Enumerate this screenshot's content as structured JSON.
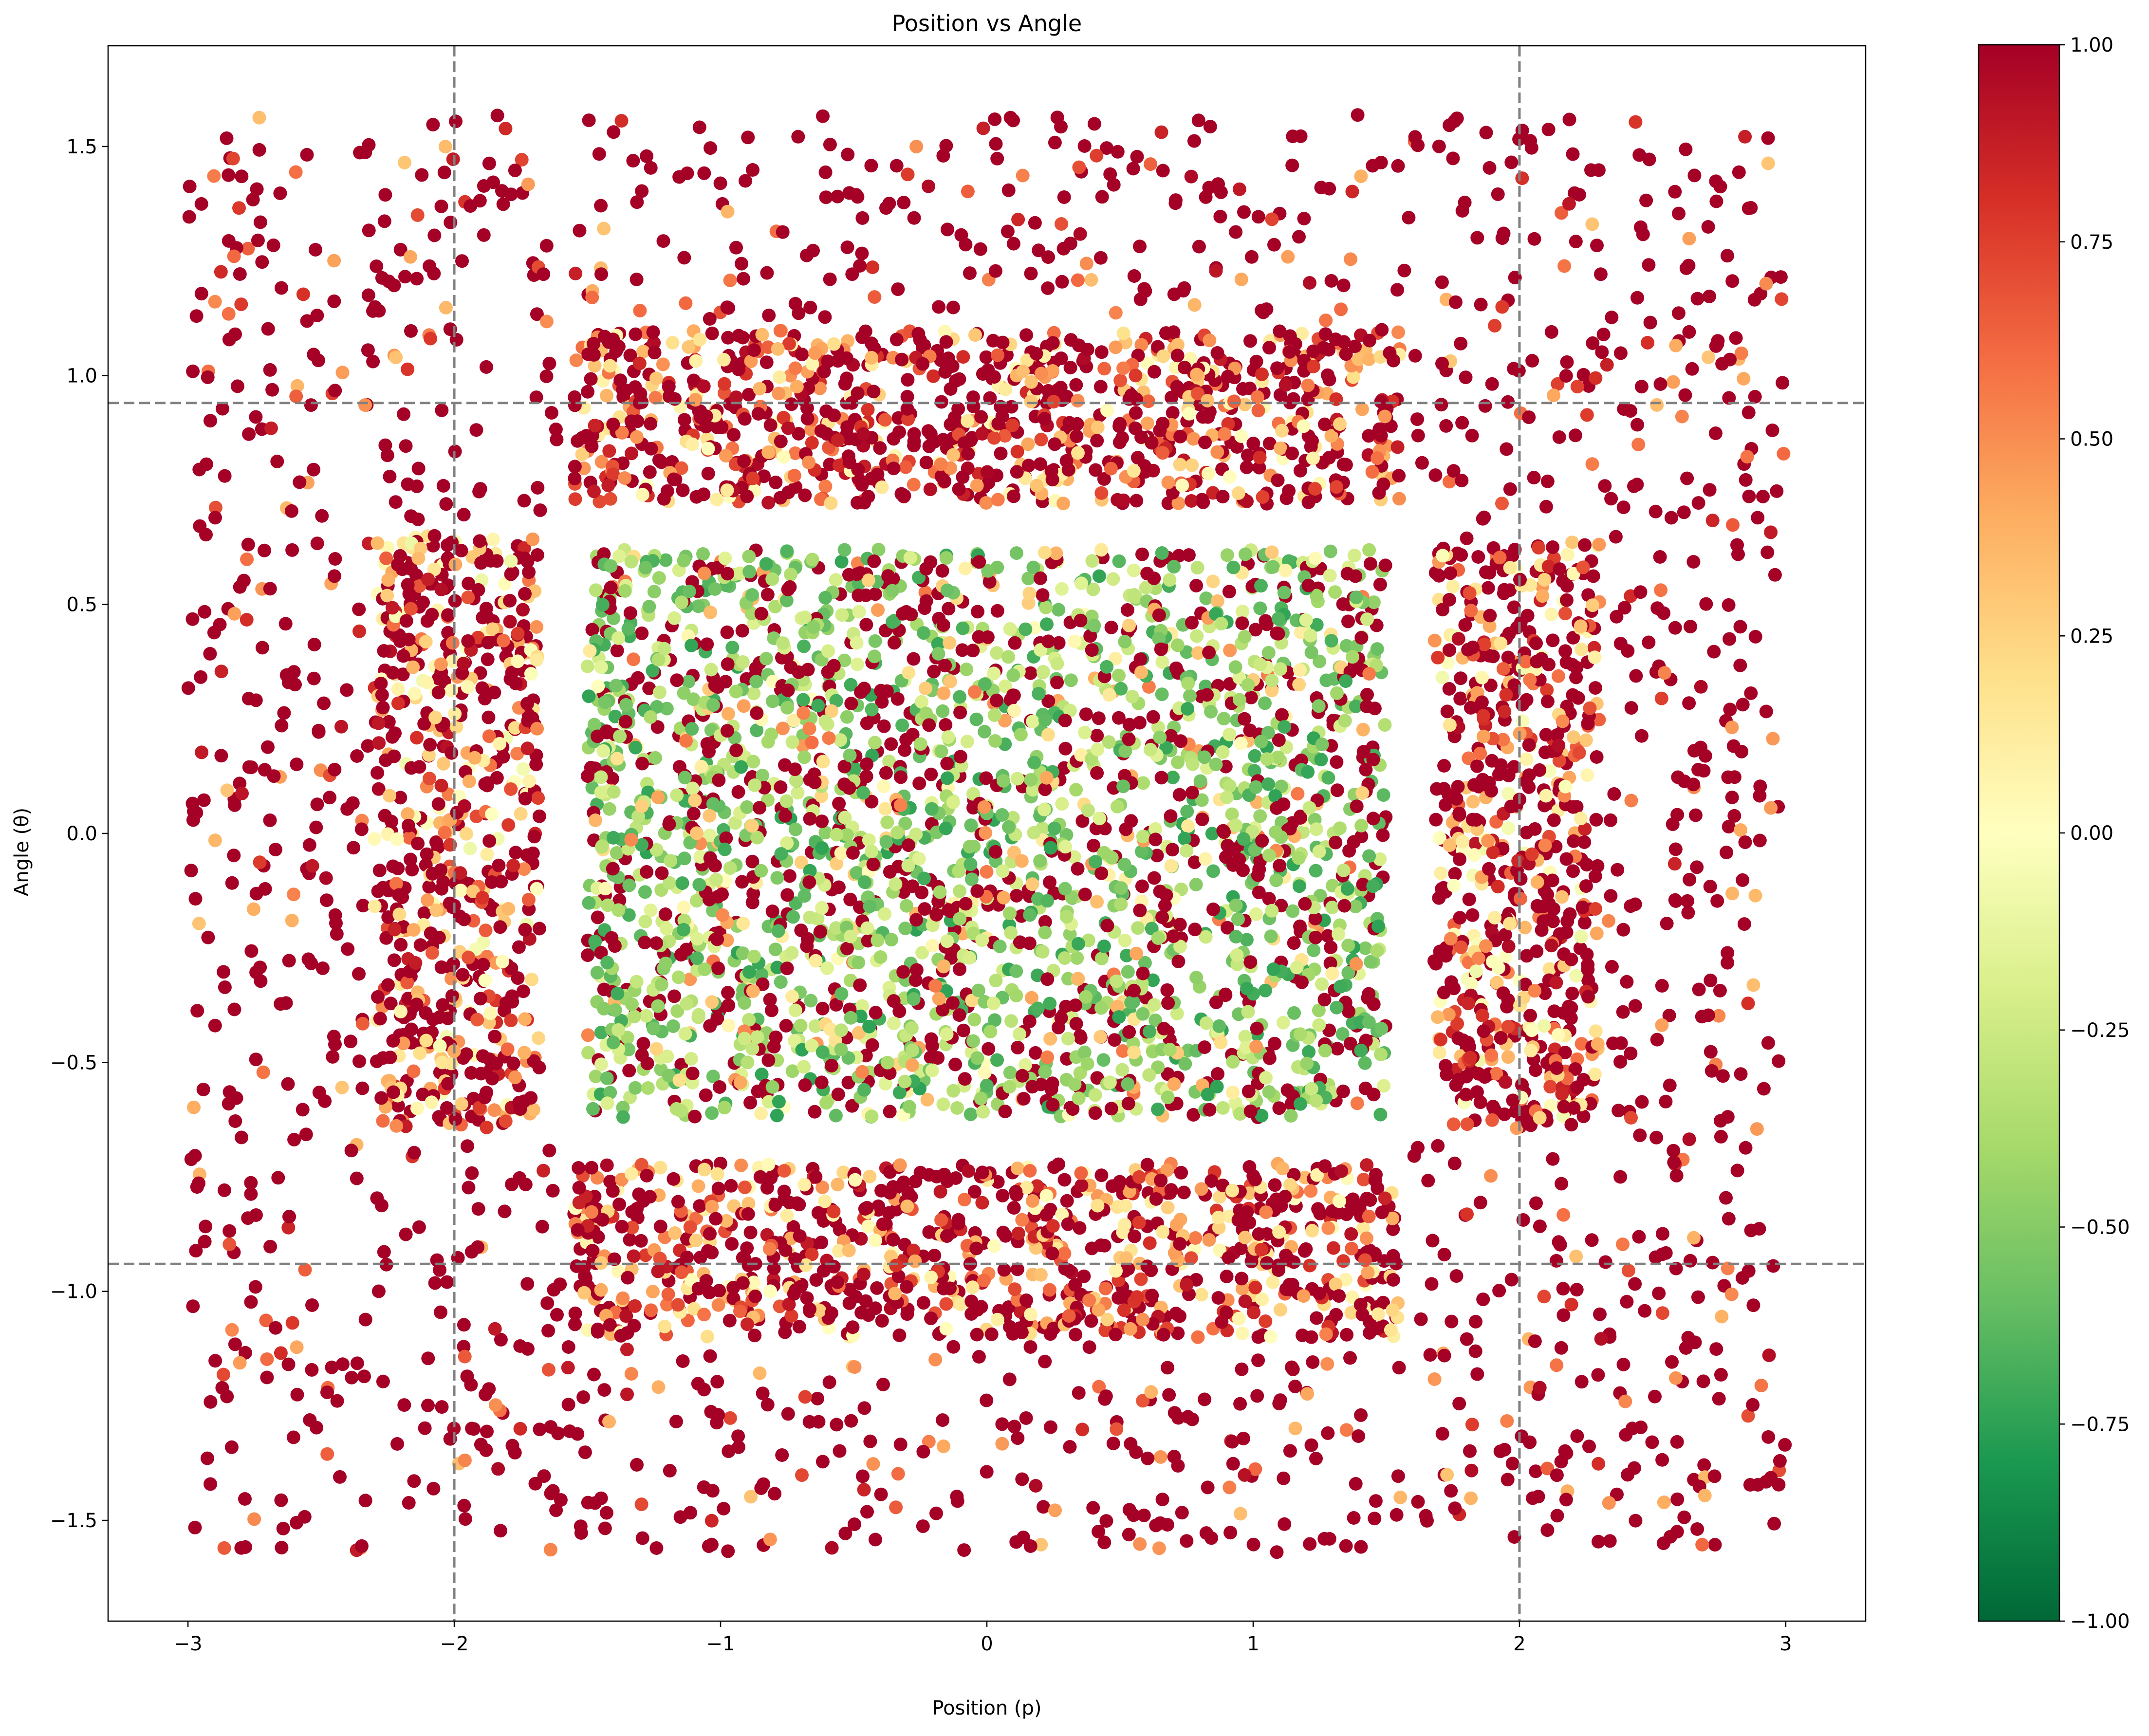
{
  "chart_data": {
    "type": "scatter",
    "title": "Position vs Angle",
    "xlabel": "Position (p)",
    "ylabel": "Angle (θ)",
    "xlim": [
      -3.3,
      3.3
    ],
    "ylim": [
      -1.72,
      1.72
    ],
    "xticks": [
      -3,
      -2,
      -1,
      0,
      1,
      2,
      3
    ],
    "xtick_labels": [
      "−3",
      "−2",
      "−1",
      "0",
      "1",
      "2",
      "3"
    ],
    "yticks": [
      -1.5,
      -1.0,
      -0.5,
      0.0,
      0.5,
      1.0,
      1.5
    ],
    "ytick_labels": [
      "−1.5",
      "−1.0",
      "−0.5",
      "0.0",
      "0.5",
      "1.0",
      "1.5"
    ],
    "reference_lines": {
      "vertical_x": [
        -2,
        2
      ],
      "horizontal_y": [
        -0.94,
        0.94
      ],
      "style": "dashed",
      "color": "#808080"
    },
    "colorbar": {
      "colormap": "RdYlGn_r",
      "range": [
        -1.0,
        1.0
      ],
      "ticks": [
        -1.0,
        -0.75,
        -0.5,
        -0.25,
        0.0,
        0.25,
        0.5,
        0.75,
        1.0
      ],
      "tick_labels": [
        "−1.00",
        "−0.75",
        "−0.50",
        "−0.25",
        "0.00",
        "0.25",
        "0.50",
        "0.75",
        "1.00"
      ],
      "stops": [
        "#006837",
        "#1a9850",
        "#66bd63",
        "#a6d96a",
        "#d9ef8b",
        "#ffffbf",
        "#fee08b",
        "#fdae61",
        "#f46d43",
        "#d73027",
        "#a50026"
      ]
    },
    "regions": [
      {
        "zone": "outer",
        "x_range": [
          -3.0,
          3.0
        ],
        "y_range": [
          -1.57,
          1.57
        ],
        "color_value_range": [
          0.3,
          1.0
        ],
        "approx_points": 1400
      },
      {
        "zone": "top-band",
        "x_range": [
          -1.55,
          1.55
        ],
        "y_range": [
          0.72,
          1.1
        ],
        "color_value_range": [
          0.0,
          1.0
        ],
        "approx_points": 950
      },
      {
        "zone": "bottom-band",
        "x_range": [
          -1.55,
          1.55
        ],
        "y_range": [
          -1.1,
          -0.72
        ],
        "color_value_range": [
          0.0,
          1.0
        ],
        "approx_points": 950
      },
      {
        "zone": "left-band",
        "x_range": [
          -2.3,
          -1.68
        ],
        "y_range": [
          -0.65,
          0.65
        ],
        "color_value_range": [
          -0.1,
          1.0
        ],
        "approx_points": 650
      },
      {
        "zone": "right-band",
        "x_range": [
          1.68,
          2.3
        ],
        "y_range": [
          -0.65,
          0.65
        ],
        "color_value_range": [
          -0.1,
          1.0
        ],
        "approx_points": 650
      },
      {
        "zone": "center",
        "x_range": [
          -1.5,
          1.5
        ],
        "y_range": [
          -0.62,
          0.62
        ],
        "color_value_range": [
          -0.75,
          1.0
        ],
        "approx_points": 2700
      }
    ]
  }
}
